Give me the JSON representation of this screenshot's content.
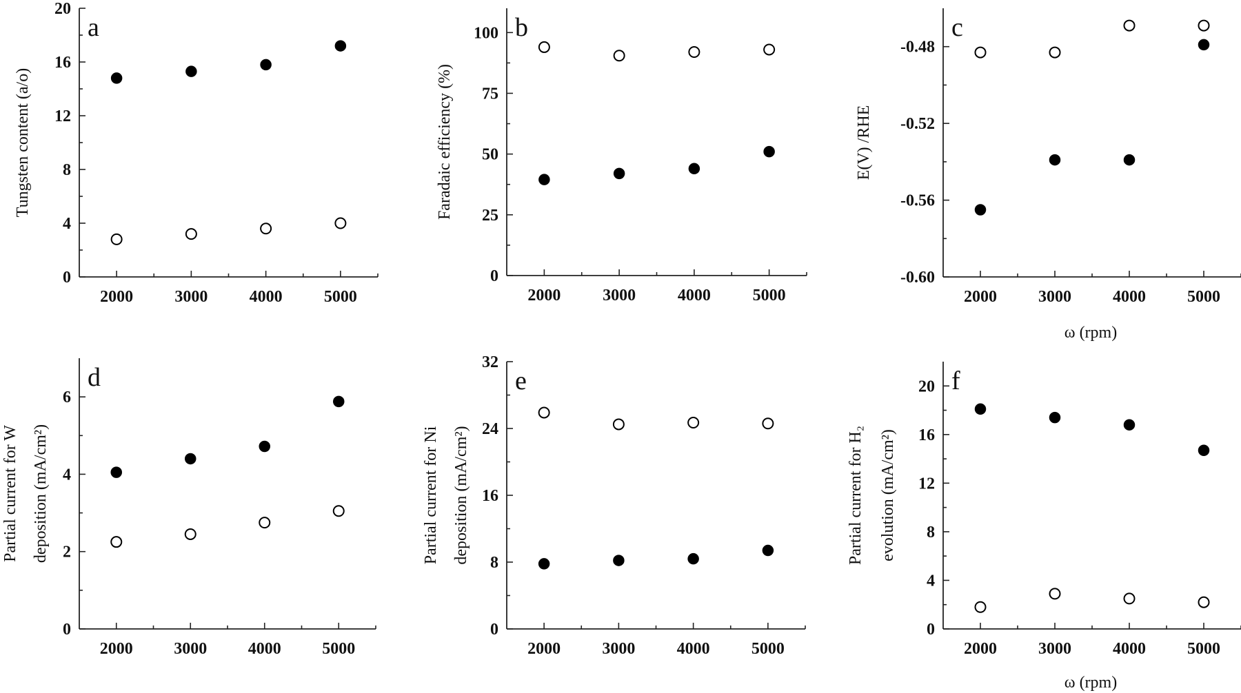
{
  "figure": {
    "shared_xlabel": "ω (rpm)"
  },
  "chart_data": [
    {
      "type": "scatter",
      "panel": "a",
      "title": "",
      "xlabel": "",
      "ylabel": [
        "Tungsten content (a/o)"
      ],
      "xticks": [
        2000,
        3000,
        4000,
        5000
      ],
      "xticklabels": [
        "2000",
        "3000",
        "4000",
        "5000"
      ],
      "yticks": [
        0,
        4,
        8,
        12,
        16,
        20
      ],
      "yticklabels": [
        "0",
        "4",
        "8",
        "12",
        "16",
        "20"
      ],
      "xlim": [
        1500,
        5500
      ],
      "ylim": [
        0,
        20
      ],
      "grid": false,
      "series": [
        {
          "marker": "filled",
          "x": [
            2000,
            3000,
            4000,
            5000
          ],
          "y": [
            14.8,
            15.3,
            15.8,
            17.2
          ]
        },
        {
          "marker": "open",
          "x": [
            2000,
            3000,
            4000,
            5000
          ],
          "y": [
            2.8,
            3.2,
            3.6,
            4.0
          ]
        }
      ]
    },
    {
      "type": "scatter",
      "panel": "b",
      "title": "",
      "xlabel": "",
      "ylabel": [
        "Faradaic efficiency (%)"
      ],
      "xticks": [
        2000,
        3000,
        4000,
        5000
      ],
      "xticklabels": [
        "2000",
        "3000",
        "4000",
        "5000"
      ],
      "yticks": [
        0,
        25,
        50,
        75,
        100
      ],
      "yticklabels": [
        "0",
        "25",
        "50",
        "75",
        "100"
      ],
      "xlim": [
        1500,
        5500
      ],
      "ylim": [
        0,
        110
      ],
      "grid": false,
      "series": [
        {
          "marker": "filled",
          "x": [
            2000,
            3000,
            4000,
            5000
          ],
          "y": [
            39.5,
            42,
            44,
            51
          ]
        },
        {
          "marker": "open",
          "x": [
            2000,
            3000,
            4000,
            5000
          ],
          "y": [
            94,
            90.5,
            92,
            93
          ]
        }
      ]
    },
    {
      "type": "scatter",
      "panel": "c",
      "title": "",
      "xlabel": "ω (rpm)",
      "ylabel": [
        "E(V)  /RHE"
      ],
      "xticks": [
        2000,
        3000,
        4000,
        5000
      ],
      "xticklabels": [
        "2000",
        "3000",
        "4000",
        "5000"
      ],
      "yticks": [
        -0.6,
        -0.56,
        -0.52,
        -0.48
      ],
      "yticklabels": [
        "-0.60",
        "-0.56",
        "-0.52",
        "-0.48"
      ],
      "xlim": [
        1500,
        5500
      ],
      "ylim": [
        -0.6,
        -0.46
      ],
      "grid": false,
      "series": [
        {
          "marker": "filled",
          "x": [
            2000,
            3000,
            4000,
            5000
          ],
          "y": [
            -0.565,
            -0.539,
            -0.539,
            -0.479
          ]
        },
        {
          "marker": "open",
          "x": [
            2000,
            3000,
            4000,
            5000
          ],
          "y": [
            -0.483,
            -0.483,
            -0.469,
            -0.469
          ]
        }
      ]
    },
    {
      "type": "scatter",
      "panel": "d",
      "title": "",
      "xlabel": "",
      "ylabel": [
        "Partial current for W",
        "deposition (mA/cm²)"
      ],
      "xticks": [
        2000,
        3000,
        4000,
        5000
      ],
      "xticklabels": [
        "2000",
        "3000",
        "4000",
        "5000"
      ],
      "yticks": [
        0,
        2,
        4,
        6
      ],
      "yticklabels": [
        "0",
        "2",
        "4",
        "6"
      ],
      "xlim": [
        1500,
        5500
      ],
      "ylim": [
        0,
        7
      ],
      "grid": false,
      "series": [
        {
          "marker": "filled",
          "x": [
            2000,
            3000,
            4000,
            5000
          ],
          "y": [
            4.05,
            4.4,
            4.72,
            5.88
          ]
        },
        {
          "marker": "open",
          "x": [
            2000,
            3000,
            4000,
            5000
          ],
          "y": [
            2.25,
            2.45,
            2.75,
            3.05
          ]
        }
      ]
    },
    {
      "type": "scatter",
      "panel": "e",
      "title": "",
      "xlabel": "",
      "ylabel": [
        "Partial current for Ni",
        "deposition (mA/cm²)"
      ],
      "xticks": [
        2000,
        3000,
        4000,
        5000
      ],
      "xticklabels": [
        "2000",
        "3000",
        "4000",
        "5000"
      ],
      "yticks": [
        0,
        8,
        16,
        24,
        32
      ],
      "yticklabels": [
        "0",
        "8",
        "16",
        "24",
        "32"
      ],
      "xlim": [
        1500,
        5500
      ],
      "ylim": [
        0,
        32
      ],
      "grid": false,
      "series": [
        {
          "marker": "filled",
          "x": [
            2000,
            3000,
            4000,
            5000
          ],
          "y": [
            7.8,
            8.2,
            8.4,
            9.4
          ]
        },
        {
          "marker": "open",
          "x": [
            2000,
            3000,
            4000,
            5000
          ],
          "y": [
            25.9,
            24.5,
            24.7,
            24.6
          ]
        }
      ]
    },
    {
      "type": "scatter",
      "panel": "f",
      "title": "",
      "xlabel": "ω (rpm)",
      "ylabel": [
        "Partial current for H₂",
        "evolution (mA/cm²)"
      ],
      "xticks": [
        2000,
        3000,
        4000,
        5000
      ],
      "xticklabels": [
        "2000",
        "3000",
        "4000",
        "5000"
      ],
      "yticks": [
        0,
        4,
        8,
        12,
        16,
        20
      ],
      "yticklabels": [
        "0",
        "4",
        "8",
        "12",
        "16",
        "20"
      ],
      "xlim": [
        1500,
        5500
      ],
      "ylim": [
        0,
        22
      ],
      "grid": false,
      "series": [
        {
          "marker": "filled",
          "x": [
            2000,
            3000,
            4000,
            5000
          ],
          "y": [
            18.1,
            17.4,
            16.8,
            14.7
          ]
        },
        {
          "marker": "open",
          "x": [
            2000,
            3000,
            4000,
            5000
          ],
          "y": [
            1.8,
            2.9,
            2.5,
            2.2
          ]
        }
      ]
    }
  ]
}
